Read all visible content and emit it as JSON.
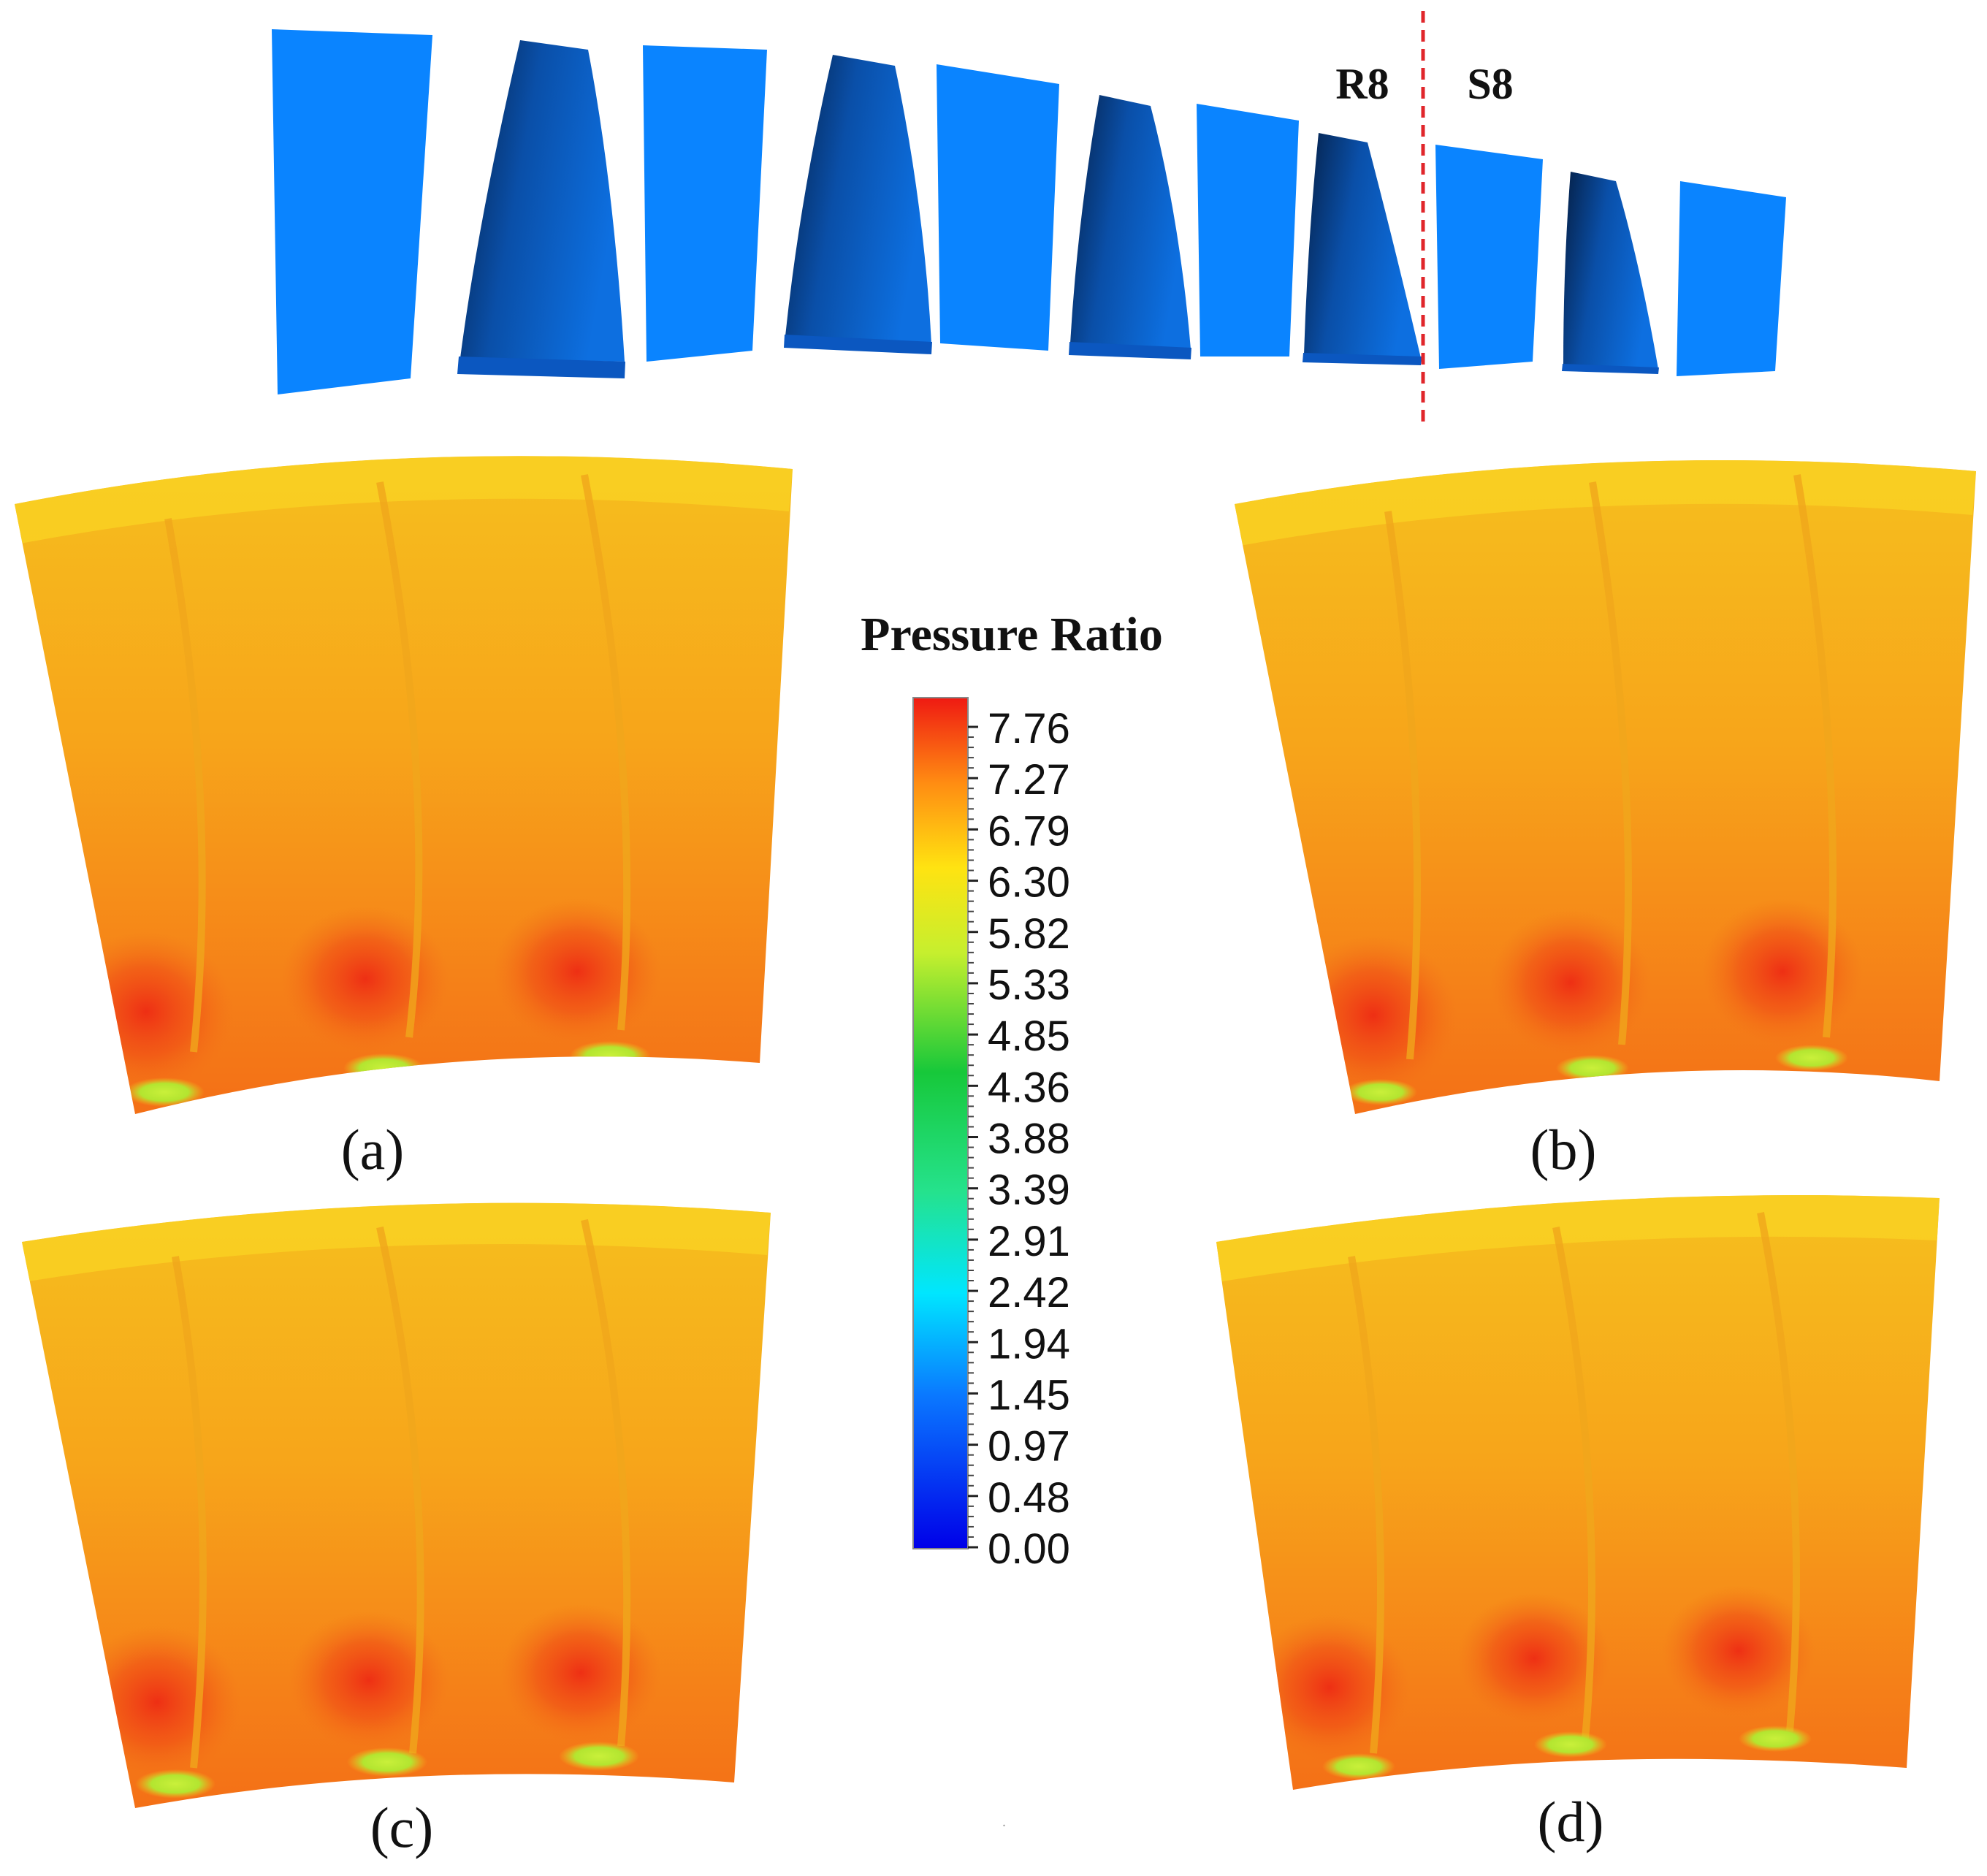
{
  "stage_labels": {
    "rotor": "R8",
    "stator": "S8"
  },
  "colors": {
    "stator_blue": "#0a84ff",
    "rotor_dark": "#062f66",
    "interface_line": "#e0262b",
    "cfd_base": "#f6a21a"
  },
  "colorbar": {
    "title": "Pressure Ratio",
    "min": 0.0,
    "max": 7.76,
    "ticks": [
      "7.76",
      "7.27",
      "6.79",
      "6.30",
      "5.82",
      "5.33",
      "4.85",
      "4.36",
      "3.88",
      "3.39",
      "2.91",
      "2.42",
      "1.94",
      "1.45",
      "0.97",
      "0.48",
      "0.00"
    ]
  },
  "panels": [
    {
      "id": "a",
      "label": "(a)"
    },
    {
      "id": "b",
      "label": "(b)"
    },
    {
      "id": "c",
      "label": "(c)"
    },
    {
      "id": "d",
      "label": "(d)"
    }
  ]
}
